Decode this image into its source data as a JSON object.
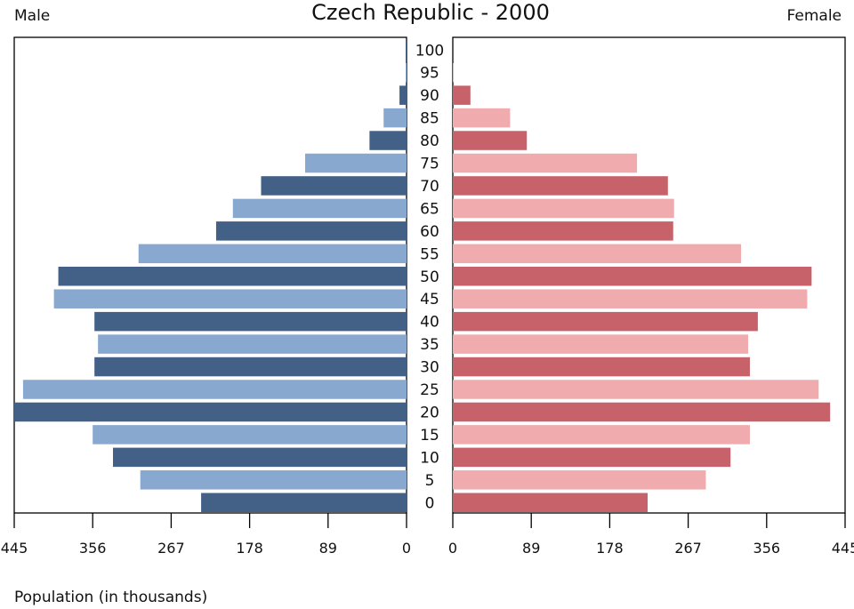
{
  "chart_data": {
    "type": "bar",
    "orientation": "horizontal-pyramid",
    "title": "Czech Republic - 2000",
    "left_label": "Male",
    "right_label": "Female",
    "xlabel": "Population (in thousands)",
    "xlim": [
      0,
      445
    ],
    "x_ticks": [
      "0",
      "89",
      "178",
      "267",
      "356",
      "445"
    ],
    "age_groups": [
      "0",
      "5",
      "10",
      "15",
      "20",
      "25",
      "30",
      "35",
      "40",
      "45",
      "50",
      "55",
      "60",
      "65",
      "70",
      "75",
      "80",
      "85",
      "90",
      "95",
      "100"
    ],
    "series": [
      {
        "name": "Male",
        "values": [
          233,
          302,
          333,
          356,
          445,
          435,
          354,
          350,
          354,
          400,
          395,
          304,
          216,
          197,
          165,
          115,
          42,
          26,
          8,
          1,
          1
        ],
        "colors": [
          "#436086",
          "#89a8cf"
        ]
      },
      {
        "name": "Female",
        "values": [
          221,
          287,
          315,
          337,
          428,
          415,
          337,
          335,
          346,
          402,
          407,
          327,
          250,
          251,
          244,
          209,
          84,
          65,
          20,
          1,
          0
        ],
        "colors": [
          "#c8626a",
          "#f0abae"
        ]
      }
    ],
    "grid": false,
    "legend": "none"
  }
}
